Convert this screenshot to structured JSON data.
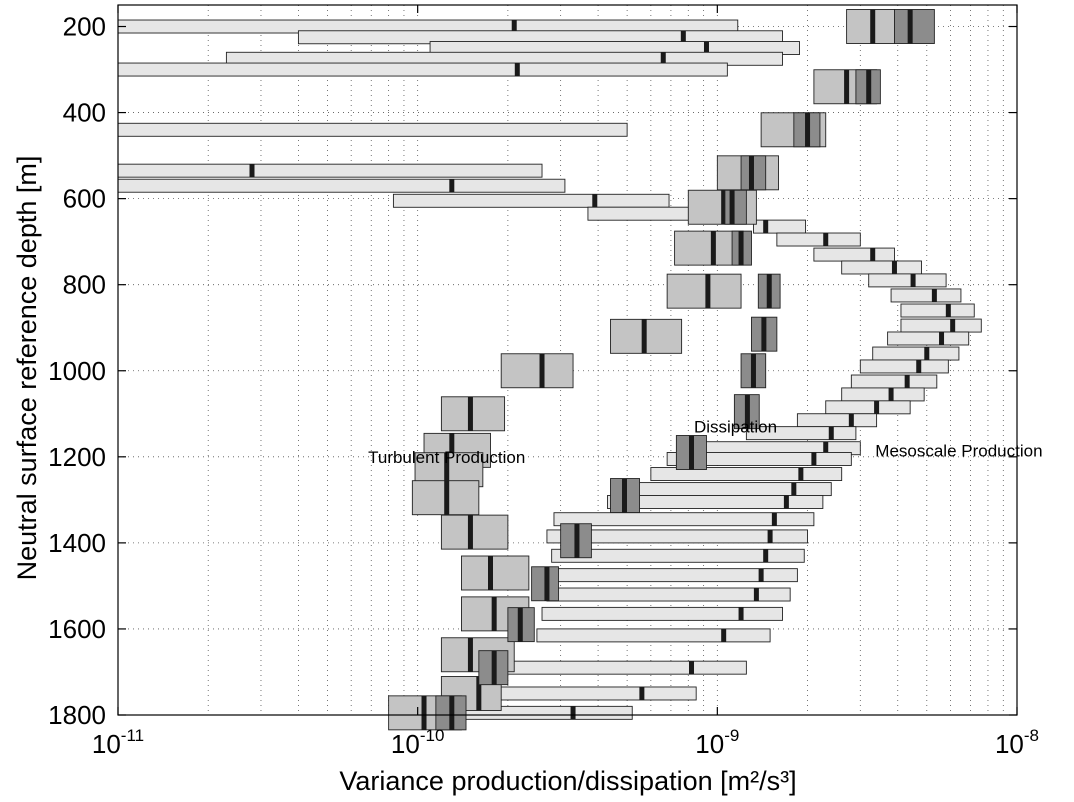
{
  "chart_data": {
    "type": "box",
    "xlabel": "Variance production/dissipation [m²/s³]",
    "ylabel": "Neutral surface reference depth [m]",
    "xscale": "log",
    "xlim": [
      1e-11,
      1e-08
    ],
    "ylim": [
      1800,
      150
    ],
    "y_direction": "reversed",
    "grid": true,
    "x_ticks": [
      {
        "value": 1e-11,
        "base": "10",
        "exp": "-11"
      },
      {
        "value": 1e-10,
        "base": "10",
        "exp": "-10"
      },
      {
        "value": 1e-09,
        "base": "10",
        "exp": "-9"
      },
      {
        "value": 1e-08,
        "base": "10",
        "exp": "-8"
      }
    ],
    "y_ticks": [
      200,
      400,
      600,
      800,
      1000,
      1200,
      1400,
      1600,
      1800
    ],
    "annotations": [
      {
        "text": "Turbulent Production",
        "x": 1.25e-10,
        "y": 1200
      },
      {
        "text": "Dissipation",
        "x": 1.15e-09,
        "y": 1130
      },
      {
        "text": "Mesoscale Production",
        "x": 6.4e-09,
        "y": 1185
      }
    ],
    "series": [
      {
        "name": "Mesoscale Production",
        "color": "#e6e6e6",
        "boxes": [
          {
            "depth": 200,
            "lo": 1e-11,
            "hi": 1.17e-09,
            "med": 2.1e-10
          },
          {
            "depth": 225,
            "lo": 4e-11,
            "hi": 1.65e-09,
            "med": 7.7e-10
          },
          {
            "depth": 250,
            "lo": 1.1e-10,
            "hi": 1.88e-09,
            "med": 9.2e-10
          },
          {
            "depth": 275,
            "lo": 2.3e-11,
            "hi": 1.65e-09,
            "med": 6.6e-10
          },
          {
            "depth": 300,
            "lo": 1e-11,
            "hi": 1.08e-09,
            "med": 2.15e-10
          },
          {
            "depth": 440,
            "lo": 1e-11,
            "hi": 5e-10,
            "med": null
          },
          {
            "depth": 535,
            "lo": 1e-11,
            "hi": 2.6e-10,
            "med": 2.8e-11
          },
          {
            "depth": 570,
            "lo": 1e-11,
            "hi": 3.1e-10,
            "med": 1.3e-10
          },
          {
            "depth": 605,
            "lo": 8.3e-11,
            "hi": 6.9e-10,
            "med": 3.9e-10
          },
          {
            "depth": 635,
            "lo": 3.7e-10,
            "hi": 1.06e-09,
            "med": null
          },
          {
            "depth": 665,
            "lo": 1.32e-09,
            "hi": 1.97e-09,
            "med": 1.45e-09
          },
          {
            "depth": 695,
            "lo": 1.58e-09,
            "hi": 3e-09,
            "med": 2.3e-09
          },
          {
            "depth": 730,
            "lo": 2.1e-09,
            "hi": 3.9e-09,
            "med": 3.3e-09
          },
          {
            "depth": 760,
            "lo": 2.6e-09,
            "hi": 4.8e-09,
            "med": 3.9e-09
          },
          {
            "depth": 790,
            "lo": 3.2e-09,
            "hi": 5.8e-09,
            "med": 4.5e-09
          },
          {
            "depth": 825,
            "lo": 3.8e-09,
            "hi": 6.5e-09,
            "med": 5.3e-09
          },
          {
            "depth": 860,
            "lo": 4.1e-09,
            "hi": 7.2e-09,
            "med": 5.9e-09
          },
          {
            "depth": 895,
            "lo": 4.1e-09,
            "hi": 7.6e-09,
            "med": 6.1e-09
          },
          {
            "depth": 925,
            "lo": 3.7e-09,
            "hi": 6.9e-09,
            "med": 5.6e-09
          },
          {
            "depth": 960,
            "lo": 3.3e-09,
            "hi": 6.4e-09,
            "med": 5e-09
          },
          {
            "depth": 990,
            "lo": 3e-09,
            "hi": 5.9e-09,
            "med": 4.7e-09
          },
          {
            "depth": 1025,
            "lo": 2.8e-09,
            "hi": 5.4e-09,
            "med": 4.3e-09
          },
          {
            "depth": 1055,
            "lo": 2.6e-09,
            "hi": 4.9e-09,
            "med": 3.8e-09
          },
          {
            "depth": 1085,
            "lo": 2.3e-09,
            "hi": 4.4e-09,
            "med": 3.4e-09
          },
          {
            "depth": 1115,
            "lo": 1.85e-09,
            "hi": 3.4e-09,
            "med": 2.8e-09
          },
          {
            "depth": 1145,
            "lo": 1.25e-09,
            "hi": 2.9e-09,
            "med": 2.4e-09
          },
          {
            "depth": 1180,
            "lo": 7.8e-10,
            "hi": 3e-09,
            "med": 2.3e-09
          },
          {
            "depth": 1205,
            "lo": 6.8e-10,
            "hi": 2.8e-09,
            "med": 2.1e-09
          },
          {
            "depth": 1240,
            "lo": 6e-10,
            "hi": 2.6e-09,
            "med": 1.9e-09
          },
          {
            "depth": 1275,
            "lo": 5.3e-10,
            "hi": 2.4e-09,
            "med": 1.8e-09
          },
          {
            "depth": 1305,
            "lo": 4.3e-10,
            "hi": 2.25e-09,
            "med": 1.7e-09
          },
          {
            "depth": 1345,
            "lo": 2.85e-10,
            "hi": 2.1e-09,
            "med": 1.55e-09
          },
          {
            "depth": 1385,
            "lo": 2.7e-10,
            "hi": 2e-09,
            "med": 1.5e-09
          },
          {
            "depth": 1430,
            "lo": 2.8e-10,
            "hi": 1.95e-09,
            "med": 1.45e-09
          },
          {
            "depth": 1475,
            "lo": 2.8e-10,
            "hi": 1.85e-09,
            "med": 1.4e-09
          },
          {
            "depth": 1520,
            "lo": 2.7e-10,
            "hi": 1.75e-09,
            "med": 1.35e-09
          },
          {
            "depth": 1565,
            "lo": 2.6e-10,
            "hi": 1.65e-09,
            "med": 1.2e-09
          },
          {
            "depth": 1615,
            "lo": 2.5e-10,
            "hi": 1.5e-09,
            "med": 1.05e-09
          },
          {
            "depth": 1690,
            "lo": 1.8e-10,
            "hi": 1.25e-09,
            "med": 8.2e-10
          },
          {
            "depth": 1750,
            "lo": 1.6e-10,
            "hi": 8.5e-10,
            "med": 5.6e-10
          },
          {
            "depth": 1795,
            "lo": 1.3e-10,
            "hi": 5.2e-10,
            "med": 3.3e-10
          }
        ]
      },
      {
        "name": "Turbulent Production",
        "color": "#c4c4c4",
        "boxes": [
          {
            "depth": 200,
            "lo": 2.7e-09,
            "hi": 3.9e-09,
            "med": 3.3e-09
          },
          {
            "depth": 340,
            "lo": 2.1e-09,
            "hi": 3.4e-09,
            "med": 2.7e-09
          },
          {
            "depth": 440,
            "lo": 1.4e-09,
            "hi": 2.3e-09,
            "med": 1.85e-09
          },
          {
            "depth": 540,
            "lo": 1e-09,
            "hi": 1.6e-09,
            "med": 1.25e-09
          },
          {
            "depth": 620,
            "lo": 8e-10,
            "hi": 1.35e-09,
            "med": 1.05e-09
          },
          {
            "depth": 715,
            "lo": 7.2e-10,
            "hi": 1.22e-09,
            "med": 9.7e-10
          },
          {
            "depth": 815,
            "lo": 6.8e-10,
            "hi": 1.2e-09,
            "med": 9.3e-10
          },
          {
            "depth": 920,
            "lo": 4.4e-10,
            "hi": 7.6e-10,
            "med": 5.7e-10
          },
          {
            "depth": 1000,
            "lo": 1.9e-10,
            "hi": 3.3e-10,
            "med": 2.6e-10
          },
          {
            "depth": 1100,
            "lo": 1.2e-10,
            "hi": 1.95e-10,
            "med": 1.5e-10
          },
          {
            "depth": 1185,
            "lo": 1.05e-10,
            "hi": 1.75e-10,
            "med": 1.3e-10
          },
          {
            "depth": 1230,
            "lo": 9.8e-11,
            "hi": 1.65e-10,
            "med": 1.25e-10
          },
          {
            "depth": 1295,
            "lo": 9.6e-11,
            "hi": 1.6e-10,
            "med": 1.25e-10
          },
          {
            "depth": 1375,
            "lo": 1.2e-10,
            "hi": 2e-10,
            "med": 1.5e-10
          },
          {
            "depth": 1470,
            "lo": 1.4e-10,
            "hi": 2.35e-10,
            "med": 1.75e-10
          },
          {
            "depth": 1565,
            "lo": 1.4e-10,
            "hi": 2.35e-10,
            "med": 1.8e-10
          },
          {
            "depth": 1660,
            "lo": 1.2e-10,
            "hi": 2.1e-10,
            "med": 1.5e-10
          },
          {
            "depth": 1750,
            "lo": 1.2e-10,
            "hi": 1.9e-10,
            "med": 1.6e-10
          },
          {
            "depth": 1795,
            "lo": 8e-11,
            "hi": 1.4e-10,
            "med": 1.05e-10
          }
        ]
      },
      {
        "name": "Dissipation",
        "color": "#8c8c8c",
        "boxes": [
          {
            "depth": 200,
            "lo": 3.9e-09,
            "hi": 5.3e-09,
            "med": 4.4e-09
          },
          {
            "depth": 340,
            "lo": 2.9e-09,
            "hi": 3.5e-09,
            "med": 3.2e-09
          },
          {
            "depth": 440,
            "lo": 1.8e-09,
            "hi": 2.2e-09,
            "med": 2e-09
          },
          {
            "depth": 540,
            "lo": 1.2e-09,
            "hi": 1.45e-09,
            "med": 1.3e-09
          },
          {
            "depth": 620,
            "lo": 1.06e-09,
            "hi": 1.25e-09,
            "med": 1.12e-09
          },
          {
            "depth": 715,
            "lo": 1.12e-09,
            "hi": 1.3e-09,
            "med": 1.2e-09
          },
          {
            "depth": 815,
            "lo": 1.37e-09,
            "hi": 1.62e-09,
            "med": 1.49e-09
          },
          {
            "depth": 915,
            "lo": 1.3e-09,
            "hi": 1.58e-09,
            "med": 1.43e-09
          },
          {
            "depth": 1000,
            "lo": 1.2e-09,
            "hi": 1.45e-09,
            "med": 1.32e-09
          },
          {
            "depth": 1095,
            "lo": 1.14e-09,
            "hi": 1.38e-09,
            "med": 1.26e-09
          },
          {
            "depth": 1190,
            "lo": 7.3e-10,
            "hi": 9.2e-10,
            "med": 8.2e-10
          },
          {
            "depth": 1290,
            "lo": 4.4e-10,
            "hi": 5.5e-10,
            "med": 4.9e-10
          },
          {
            "depth": 1395,
            "lo": 3e-10,
            "hi": 3.8e-10,
            "med": 3.4e-10
          },
          {
            "depth": 1495,
            "lo": 2.4e-10,
            "hi": 2.95e-10,
            "med": 2.7e-10
          },
          {
            "depth": 1590,
            "lo": 2e-10,
            "hi": 2.45e-10,
            "med": 2.2e-10
          },
          {
            "depth": 1690,
            "lo": 1.6e-10,
            "hi": 2e-10,
            "med": 1.8e-10
          },
          {
            "depth": 1795,
            "lo": 1.15e-10,
            "hi": 1.45e-10,
            "med": 1.3e-10
          }
        ]
      }
    ]
  }
}
